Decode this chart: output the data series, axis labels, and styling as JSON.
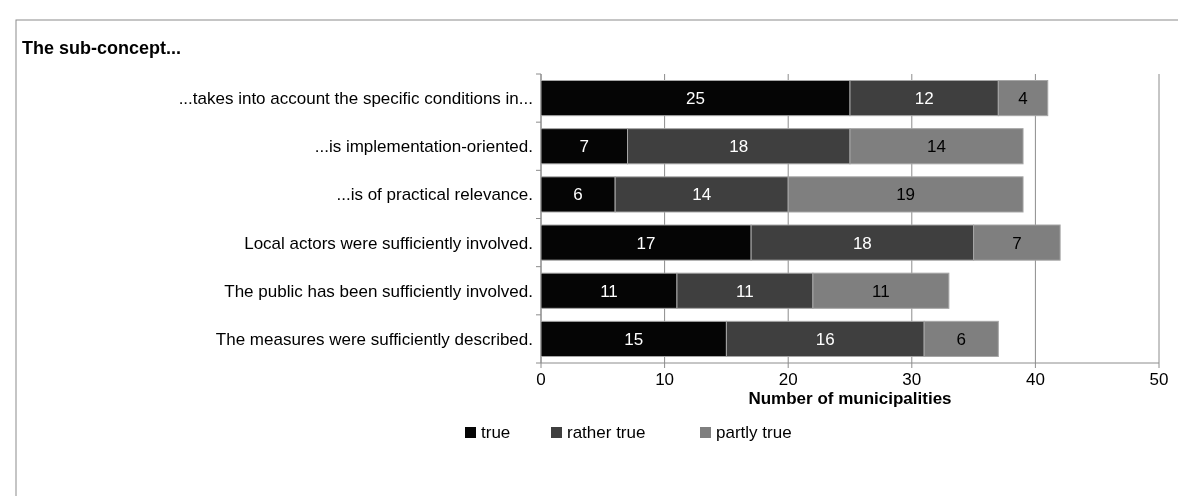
{
  "chart_data": {
    "type": "bar",
    "orientation": "horizontal",
    "stacked": true,
    "title": "The sub-concept...",
    "xlabel": "Number of municipalities",
    "categories": [
      "...takes into account the specific conditions in...",
      "...is implementation-oriented.",
      "...is of practical relevance.",
      "Local actors were sufficiently involved.",
      "The public has been sufficiently involved.",
      "The measures were sufficiently described."
    ],
    "series": [
      {
        "name": "true",
        "color": "#050505",
        "values": [
          25,
          7,
          6,
          17,
          11,
          15
        ]
      },
      {
        "name": "rather true",
        "color": "#3f3f3f",
        "values": [
          12,
          18,
          14,
          18,
          11,
          16
        ]
      },
      {
        "name": "partly true",
        "color": "#7f7f7f",
        "values": [
          4,
          14,
          19,
          7,
          11,
          6
        ]
      }
    ],
    "xlim": [
      0,
      50
    ],
    "xticks": [
      0,
      10,
      20,
      30,
      40,
      50
    ],
    "grid": "x",
    "legend": "bottom",
    "data_labels": true
  }
}
